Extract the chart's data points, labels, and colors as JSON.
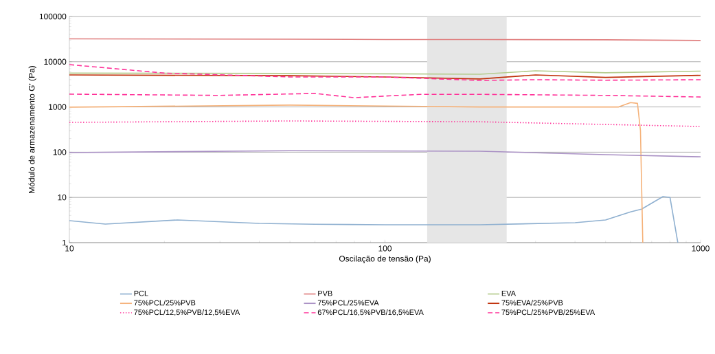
{
  "chart_data": {
    "type": "line",
    "xlabel": "Oscilação de tensão (Pa)",
    "ylabel": "Módulo de armazenamento  G' (Pa)",
    "log": "xy",
    "grid": "y",
    "legend": "bottom",
    "marker": "none",
    "xlim": [
      10,
      1000
    ],
    "xticks": [
      10,
      100,
      1000
    ],
    "ylim": [
      1,
      100000
    ],
    "yticks": [
      1,
      10,
      100,
      1000,
      10000,
      100000
    ],
    "bands": [
      {
        "axis": "x",
        "from": 136,
        "to": 243,
        "color": "#e6e6e6"
      }
    ],
    "series": [
      {
        "name": "PCL",
        "color": "#8fb0d0",
        "line_style": "solid",
        "x": [
          10,
          13,
          22,
          40,
          60,
          100,
          200,
          400,
          500,
          600,
          650,
          760,
          800,
          847
        ],
        "values": [
          3.06,
          2.57,
          3.17,
          2.66,
          2.55,
          2.48,
          2.48,
          2.76,
          3.17,
          4.8,
          5.5,
          10.4,
          10,
          1
        ]
      },
      {
        "name": "PVB",
        "color": "#e08080",
        "line_style": "solid",
        "x": [
          10,
          50,
          100,
          200,
          500,
          1000
        ],
        "values": [
          32000,
          31500,
          31000,
          31000,
          30500,
          29500
        ]
      },
      {
        "name": "EVA",
        "color": "#b5cc8e",
        "line_style": "solid",
        "x": [
          10,
          50,
          100,
          200,
          300,
          500,
          1000
        ],
        "values": [
          5600,
          5500,
          5400,
          5300,
          6300,
          5700,
          6200
        ]
      },
      {
        "name": "75%PCL/25%PVB",
        "color": "#f5b27a",
        "line_style": "solid",
        "x": [
          10,
          50,
          100,
          200,
          500,
          550,
          600,
          631,
          645,
          656
        ],
        "values": [
          990,
          1100,
          1050,
          1000,
          1000,
          1000,
          1250,
          1200,
          300,
          1
        ]
      },
      {
        "name": "75%PCL/25%EVA",
        "color": "#a990c4",
        "line_style": "solid",
        "x": [
          10,
          50,
          200,
          500,
          1000
        ],
        "values": [
          98,
          108,
          105,
          88,
          79
        ]
      },
      {
        "name": "75%EVA/25%PVB",
        "color": "#c0300a",
        "line_style": "solid",
        "x": [
          10,
          50,
          100,
          200,
          300,
          500,
          1000
        ],
        "values": [
          5100,
          4900,
          4600,
          4150,
          5100,
          4500,
          5000
        ]
      },
      {
        "name": "75%PCL/12,5%PVB/12,5%EVA",
        "color": "#ff3399",
        "line_style": "dotted",
        "x": [
          10,
          50,
          200,
          500,
          1000
        ],
        "values": [
          456,
          490,
          470,
          410,
          370
        ]
      },
      {
        "name": "67%PCL/16,5%PVB/16,5%EVA",
        "color": "#ff3399",
        "line_style": "dashed",
        "x": [
          10,
          30,
          60,
          80,
          100,
          130,
          200,
          500,
          1000
        ],
        "values": [
          1920,
          1800,
          1990,
          1600,
          1740,
          1900,
          1900,
          1800,
          1660
        ]
      },
      {
        "name": "75%PCL/25%PVB/25%EVA",
        "color": "#ff3399",
        "line_style": "dashed",
        "x": [
          10,
          20,
          50,
          100,
          200,
          300,
          500,
          1000
        ],
        "values": [
          8630,
          5600,
          4600,
          4600,
          3860,
          4000,
          3900,
          4000
        ]
      }
    ]
  }
}
